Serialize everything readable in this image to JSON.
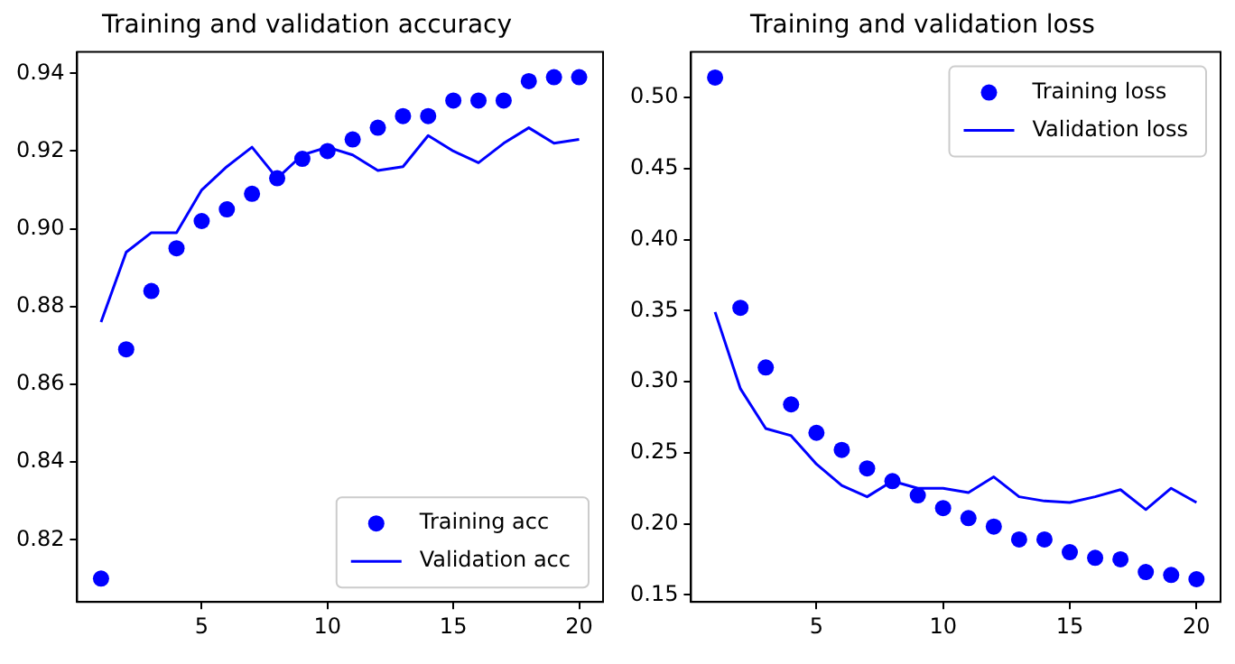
{
  "chart_data": [
    {
      "type": "line",
      "title": "Training and validation accuracy",
      "x": [
        1,
        2,
        3,
        4,
        5,
        6,
        7,
        8,
        9,
        10,
        11,
        12,
        13,
        14,
        15,
        16,
        17,
        18,
        19,
        20
      ],
      "xlim": [
        0.05,
        20.95
      ],
      "xticks": [
        5,
        10,
        15,
        20
      ],
      "ylim": [
        0.804,
        0.9455
      ],
      "yticks": [
        0.82,
        0.84,
        0.86,
        0.88,
        {
          "value": 0.9,
          "label": "0.90"
        },
        0.92,
        0.94
      ],
      "grid": false,
      "legend": "bottom right",
      "series": [
        {
          "name": "Training acc",
          "type": "scatter",
          "marker": "circle",
          "color": "#0000ff",
          "values": [
            0.81,
            0.869,
            0.884,
            0.895,
            0.902,
            0.905,
            0.909,
            0.913,
            0.918,
            0.92,
            0.923,
            0.926,
            0.929,
            0.929,
            0.933,
            0.933,
            0.933,
            0.938,
            0.939,
            0.939
          ]
        },
        {
          "name": "Validation acc",
          "marker": "none",
          "line_style": "solid",
          "color": "#0000ff",
          "values": [
            0.876,
            0.894,
            0.899,
            0.899,
            0.91,
            0.916,
            0.921,
            0.913,
            0.919,
            0.921,
            0.919,
            0.915,
            0.916,
            0.924,
            0.92,
            0.917,
            0.922,
            0.926,
            0.922,
            0.923
          ]
        }
      ]
    },
    {
      "type": "line",
      "title": "Training and validation loss",
      "x": [
        1,
        2,
        3,
        4,
        5,
        6,
        7,
        8,
        9,
        10,
        11,
        12,
        13,
        14,
        15,
        16,
        17,
        18,
        19,
        20
      ],
      "xlim": [
        0.05,
        20.95
      ],
      "xticks": [
        5,
        10,
        15,
        20
      ],
      "ylim": [
        0.145,
        0.532
      ],
      "yticks": [
        0.15,
        {
          "value": 0.2,
          "label": "0.20"
        },
        0.25,
        {
          "value": 0.3,
          "label": "0.30"
        },
        0.35,
        {
          "value": 0.4,
          "label": "0.40"
        },
        0.45,
        {
          "value": 0.5,
          "label": "0.50"
        }
      ],
      "grid": false,
      "legend": "top right",
      "series": [
        {
          "name": "Training loss",
          "type": "scatter",
          "marker": "circle",
          "color": "#0000ff",
          "values": [
            0.514,
            0.352,
            0.31,
            0.284,
            0.264,
            0.252,
            0.239,
            0.23,
            0.22,
            0.211,
            0.204,
            0.198,
            0.189,
            0.189,
            0.18,
            0.176,
            0.175,
            0.166,
            0.164,
            0.161
          ]
        },
        {
          "name": "Validation loss",
          "marker": "none",
          "line_style": "solid",
          "color": "#0000ff",
          "values": [
            0.349,
            0.295,
            0.267,
            0.262,
            0.242,
            0.227,
            0.219,
            0.23,
            0.225,
            0.225,
            0.222,
            0.233,
            0.219,
            0.216,
            0.215,
            0.219,
            0.224,
            0.21,
            0.225,
            0.215
          ]
        }
      ]
    }
  ]
}
